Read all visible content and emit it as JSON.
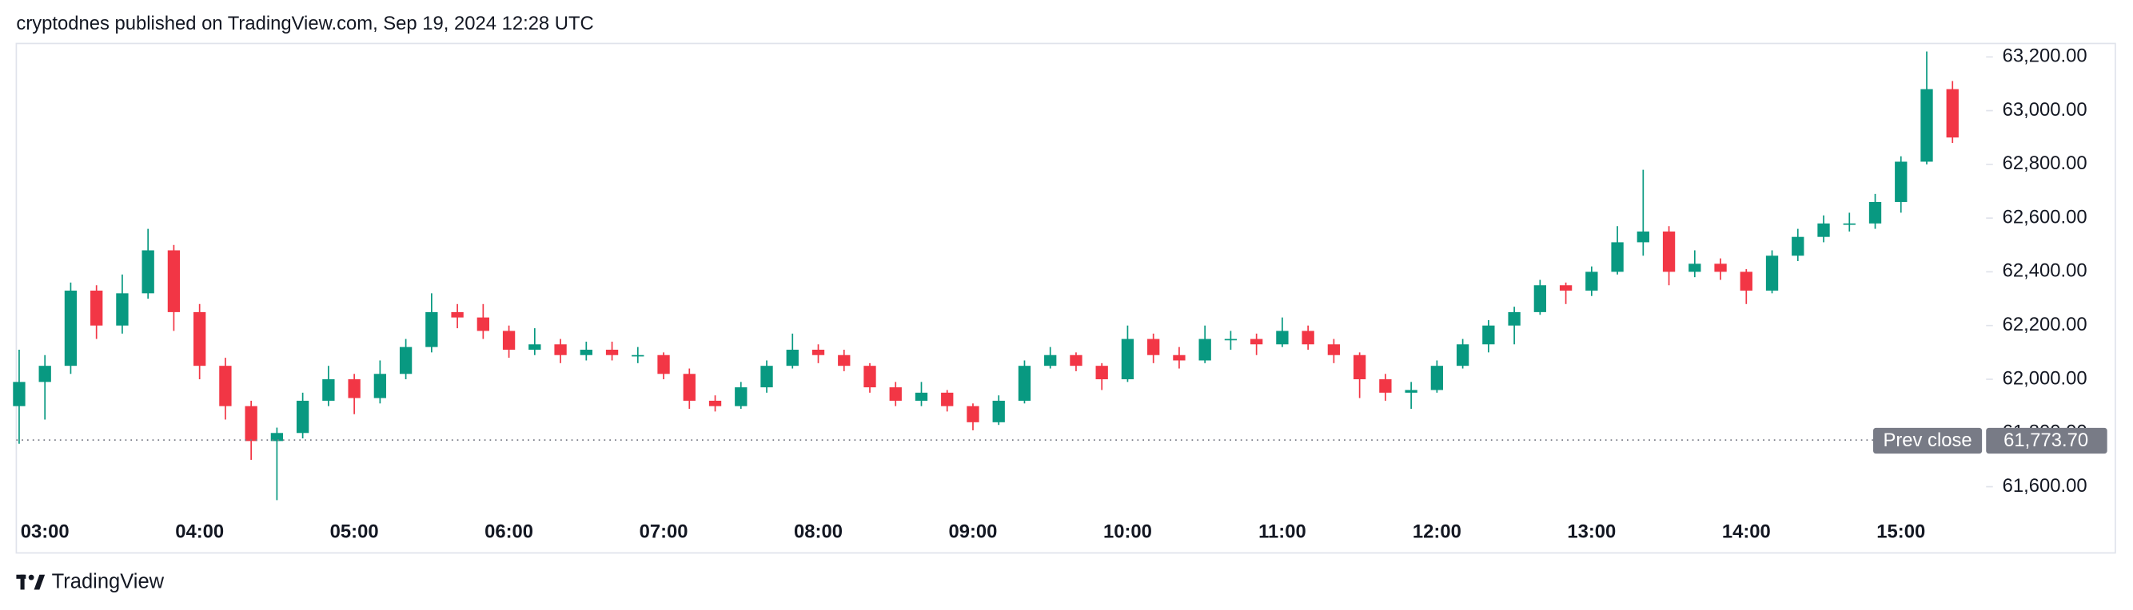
{
  "header": {
    "text": "cryptodnes published on TradingView.com, Sep 19, 2024 12:28 UTC"
  },
  "footer": {
    "brand": "TradingView"
  },
  "chart_data": {
    "type": "candlestick",
    "categories": [
      null,
      "03:00",
      null,
      null,
      null,
      null,
      null,
      "04:00",
      null,
      null,
      null,
      null,
      null,
      "05:00",
      null,
      null,
      null,
      null,
      null,
      "06:00",
      null,
      null,
      null,
      null,
      null,
      "07:00",
      null,
      null,
      null,
      null,
      null,
      "08:00",
      null,
      null,
      null,
      null,
      null,
      "09:00",
      null,
      null,
      null,
      null,
      null,
      "10:00",
      null,
      null,
      null,
      null,
      null,
      "11:00",
      null,
      null,
      null,
      null,
      null,
      "12:00",
      null,
      null,
      null,
      null,
      null,
      "13:00",
      null,
      null,
      null,
      null,
      null,
      "14:00",
      null,
      null,
      null,
      null,
      null,
      "15:00",
      null,
      null
    ],
    "open": [
      61900,
      61990,
      62050,
      62330,
      62200,
      62320,
      62480,
      62250,
      62050,
      61900,
      61770,
      61800,
      61920,
      62000,
      61930,
      62020,
      62120,
      62250,
      62230,
      62180,
      62110,
      62130,
      62090,
      62110,
      62090,
      62090,
      62020,
      61920,
      61900,
      61970,
      62050,
      62110,
      62090,
      62050,
      61970,
      61920,
      61950,
      61900,
      61840,
      61920,
      62050,
      62090,
      62050,
      62000,
      62150,
      62090,
      62070,
      62150,
      62150,
      62130,
      62180,
      62130,
      62090,
      62000,
      61950,
      61960,
      62050,
      62130,
      62200,
      62250,
      62350,
      62330,
      62400,
      62510,
      62550,
      62400,
      62430,
      62400,
      62330,
      62460,
      62530,
      62580,
      62580,
      62660,
      62810,
      63080
    ],
    "high": [
      62110,
      62090,
      62360,
      62350,
      62390,
      62560,
      62500,
      62280,
      62080,
      61920,
      61820,
      61950,
      62050,
      62020,
      62070,
      62150,
      62320,
      62280,
      62280,
      62200,
      62190,
      62150,
      62140,
      62140,
      62120,
      62100,
      62040,
      61940,
      61990,
      62070,
      62170,
      62130,
      62110,
      62060,
      61990,
      61990,
      61960,
      61910,
      61940,
      62070,
      62120,
      62100,
      62060,
      62200,
      62170,
      62120,
      62200,
      62180,
      62170,
      62230,
      62200,
      62150,
      62100,
      62020,
      61990,
      62070,
      62150,
      62220,
      62270,
      62370,
      62360,
      62420,
      62570,
      62780,
      62570,
      62480,
      62450,
      62410,
      62480,
      62560,
      62610,
      62620,
      62690,
      62830,
      63220,
      63110
    ],
    "low": [
      61760,
      61850,
      62020,
      62150,
      62170,
      62300,
      62180,
      62000,
      61850,
      61700,
      61550,
      61780,
      61900,
      61870,
      61910,
      62000,
      62100,
      62190,
      62150,
      62080,
      62090,
      62060,
      62070,
      62070,
      62060,
      62000,
      61890,
      61880,
      61890,
      61950,
      62040,
      62060,
      62030,
      61950,
      61900,
      61900,
      61880,
      61810,
      61830,
      61910,
      62040,
      62030,
      61960,
      61990,
      62060,
      62040,
      62060,
      62110,
      62090,
      62120,
      62110,
      62060,
      61930,
      61920,
      61890,
      61950,
      62040,
      62100,
      62130,
      62240,
      62280,
      62310,
      62390,
      62460,
      62350,
      62380,
      62370,
      62280,
      62320,
      62440,
      62510,
      62550,
      62560,
      62620,
      62800,
      62880
    ],
    "close": [
      61990,
      62050,
      62330,
      62200,
      62320,
      62480,
      62250,
      62050,
      61900,
      61770,
      61800,
      61920,
      62000,
      61930,
      62020,
      62120,
      62250,
      62230,
      62180,
      62110,
      62130,
      62090,
      62110,
      62090,
      62090,
      62020,
      61920,
      61900,
      61970,
      62050,
      62110,
      62090,
      62050,
      61970,
      61920,
      61950,
      61900,
      61840,
      61920,
      62050,
      62090,
      62050,
      62000,
      62150,
      62090,
      62070,
      62150,
      62150,
      62130,
      62180,
      62130,
      62090,
      62000,
      61950,
      61960,
      62050,
      62130,
      62200,
      62250,
      62350,
      62330,
      62400,
      62510,
      62550,
      62400,
      62430,
      62400,
      62330,
      62460,
      62530,
      62580,
      62580,
      62660,
      62810,
      63080,
      62900
    ],
    "up_color": "#089981",
    "down_color": "#f23645",
    "ylim": [
      61490,
      63250
    ],
    "yticks": [
      {
        "value": 61600,
        "label": "61,600.00"
      },
      {
        "value": 61800,
        "label": "61,800.00"
      },
      {
        "value": 62000,
        "label": "62,000.00"
      },
      {
        "value": 62200,
        "label": "62,200.00"
      },
      {
        "value": 62400,
        "label": "62,400.00"
      },
      {
        "value": 62600,
        "label": "62,600.00"
      },
      {
        "value": 62800,
        "label": "62,800.00"
      },
      {
        "value": 63000,
        "label": "63,000.00"
      },
      {
        "value": 63200,
        "label": "63,200.00"
      }
    ],
    "prev_close": {
      "label": "Prev close",
      "value": 61773.7,
      "value_label": "61,773.70"
    },
    "grid": false
  }
}
